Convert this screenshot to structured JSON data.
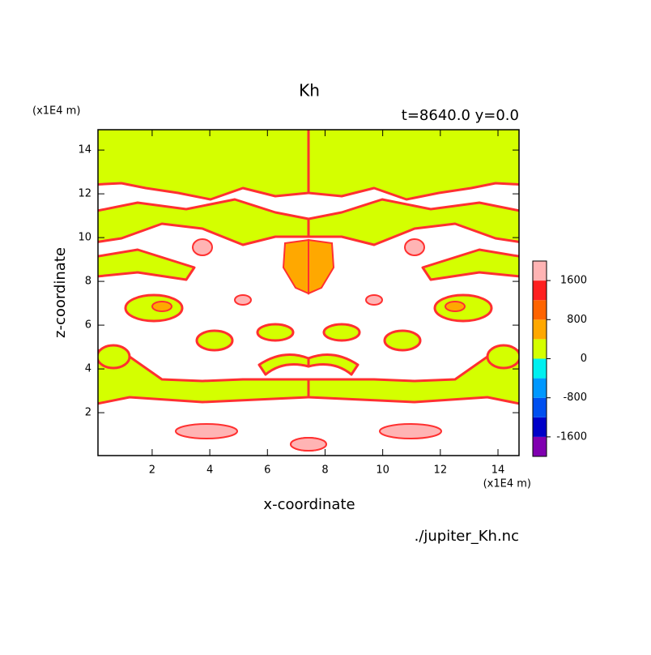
{
  "chart_data": {
    "type": "contour",
    "title": "Kh",
    "subtitle": "t=8640.0 y=0.0",
    "x_label": "x-coordinate",
    "y_label": "z-coordinate",
    "x_unit": "(x1E4 m)",
    "y_unit": "(x1E4 m)",
    "xlim": [
      0.12,
      14.73
    ],
    "ylim": [
      0.04,
      14.93
    ],
    "xticks": [
      2,
      4,
      6,
      8,
      10,
      12,
      14
    ],
    "yticks": [
      2,
      4,
      6,
      8,
      10,
      12,
      14
    ],
    "colorbar": {
      "lim": [
        -2000,
        2000
      ],
      "ticks": [
        -1600,
        -800,
        0,
        800,
        1600
      ],
      "colors": [
        "#8000b0",
        "#0000c8",
        "#0050f0",
        "#0098ff",
        "#00f0f0",
        "#d4ff00",
        "#ffa800",
        "#ff6400",
        "#ff2020",
        "#ffb4b4"
      ]
    },
    "footer": "./jupiter_Kh.nc"
  }
}
